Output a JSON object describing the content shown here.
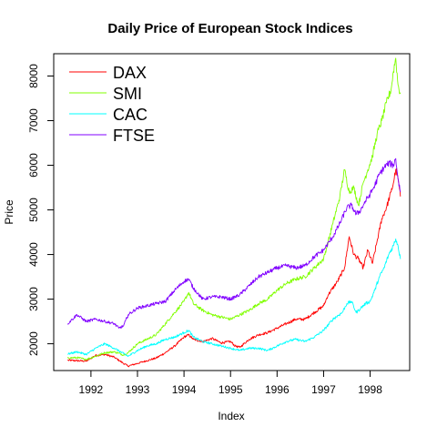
{
  "chart_data": {
    "type": "line",
    "title": "Daily Price of European Stock Indices",
    "xlabel": "Index",
    "ylabel": "Price",
    "xlim": [
      1991.2,
      1998.85
    ],
    "ylim": [
      1400,
      8500
    ],
    "x_ticks": [
      1992,
      1993,
      1994,
      1995,
      1996,
      1997,
      1998
    ],
    "y_ticks": [
      2000,
      3000,
      4000,
      5000,
      6000,
      7000,
      8000
    ],
    "legend_position": "top-left",
    "grid": false,
    "series": [
      {
        "name": "DAX",
        "color": "#ff0000",
        "points": [
          [
            1991.5,
            1630
          ],
          [
            1991.7,
            1620
          ],
          [
            1991.9,
            1610
          ],
          [
            1992.1,
            1740
          ],
          [
            1992.3,
            1760
          ],
          [
            1992.5,
            1700
          ],
          [
            1992.7,
            1560
          ],
          [
            1992.8,
            1500
          ],
          [
            1992.9,
            1530
          ],
          [
            1993.0,
            1560
          ],
          [
            1993.2,
            1620
          ],
          [
            1993.4,
            1680
          ],
          [
            1993.6,
            1800
          ],
          [
            1993.8,
            1950
          ],
          [
            1994.0,
            2150
          ],
          [
            1994.1,
            2200
          ],
          [
            1994.2,
            2100
          ],
          [
            1994.4,
            2050
          ],
          [
            1994.5,
            2080
          ],
          [
            1994.6,
            2120
          ],
          [
            1994.8,
            2020
          ],
          [
            1995.0,
            2050
          ],
          [
            1995.1,
            1950
          ],
          [
            1995.2,
            1920
          ],
          [
            1995.4,
            2100
          ],
          [
            1995.6,
            2200
          ],
          [
            1995.8,
            2250
          ],
          [
            1996.0,
            2350
          ],
          [
            1996.2,
            2450
          ],
          [
            1996.4,
            2550
          ],
          [
            1996.6,
            2550
          ],
          [
            1996.8,
            2700
          ],
          [
            1997.0,
            2850
          ],
          [
            1997.1,
            3100
          ],
          [
            1997.3,
            3400
          ],
          [
            1997.45,
            3700
          ],
          [
            1997.55,
            4400
          ],
          [
            1997.65,
            4000
          ],
          [
            1997.75,
            3900
          ],
          [
            1997.85,
            3700
          ],
          [
            1997.95,
            4100
          ],
          [
            1998.05,
            3800
          ],
          [
            1998.15,
            4300
          ],
          [
            1998.25,
            4800
          ],
          [
            1998.35,
            5050
          ],
          [
            1998.45,
            5400
          ],
          [
            1998.5,
            5600
          ],
          [
            1998.55,
            5900
          ],
          [
            1998.6,
            5700
          ],
          [
            1998.65,
            5300
          ]
        ]
      },
      {
        "name": "SMI",
        "color": "#80ff00",
        "points": [
          [
            1991.5,
            1680
          ],
          [
            1991.7,
            1690
          ],
          [
            1991.9,
            1650
          ],
          [
            1992.1,
            1720
          ],
          [
            1992.3,
            1800
          ],
          [
            1992.5,
            1820
          ],
          [
            1992.7,
            1750
          ],
          [
            1992.8,
            1800
          ],
          [
            1993.0,
            2000
          ],
          [
            1993.2,
            2100
          ],
          [
            1993.4,
            2200
          ],
          [
            1993.6,
            2450
          ],
          [
            1993.8,
            2700
          ],
          [
            1994.0,
            2950
          ],
          [
            1994.1,
            3150
          ],
          [
            1994.2,
            2900
          ],
          [
            1994.4,
            2750
          ],
          [
            1994.6,
            2650
          ],
          [
            1994.8,
            2600
          ],
          [
            1995.0,
            2550
          ],
          [
            1995.2,
            2650
          ],
          [
            1995.4,
            2750
          ],
          [
            1995.6,
            2900
          ],
          [
            1995.8,
            3000
          ],
          [
            1996.0,
            3200
          ],
          [
            1996.2,
            3350
          ],
          [
            1996.4,
            3450
          ],
          [
            1996.6,
            3500
          ],
          [
            1996.8,
            3700
          ],
          [
            1997.0,
            3900
          ],
          [
            1997.2,
            4700
          ],
          [
            1997.35,
            5300
          ],
          [
            1997.45,
            5900
          ],
          [
            1997.55,
            5400
          ],
          [
            1997.65,
            5500
          ],
          [
            1997.75,
            5100
          ],
          [
            1997.85,
            5600
          ],
          [
            1997.95,
            5900
          ],
          [
            1998.05,
            6200
          ],
          [
            1998.15,
            6700
          ],
          [
            1998.25,
            7000
          ],
          [
            1998.35,
            7400
          ],
          [
            1998.45,
            7700
          ],
          [
            1998.5,
            8100
          ],
          [
            1998.55,
            8400
          ],
          [
            1998.6,
            7800
          ],
          [
            1998.65,
            7600
          ]
        ]
      },
      {
        "name": "CAC",
        "color": "#00ffff",
        "points": [
          [
            1991.5,
            1770
          ],
          [
            1991.7,
            1820
          ],
          [
            1991.9,
            1760
          ],
          [
            1992.1,
            1900
          ],
          [
            1992.3,
            2000
          ],
          [
            1992.5,
            1900
          ],
          [
            1992.7,
            1780
          ],
          [
            1992.8,
            1720
          ],
          [
            1993.0,
            1850
          ],
          [
            1993.2,
            1950
          ],
          [
            1993.4,
            2000
          ],
          [
            1993.6,
            2100
          ],
          [
            1993.8,
            2150
          ],
          [
            1994.0,
            2250
          ],
          [
            1994.1,
            2300
          ],
          [
            1994.2,
            2150
          ],
          [
            1994.4,
            2050
          ],
          [
            1994.6,
            2000
          ],
          [
            1994.8,
            1950
          ],
          [
            1995.0,
            1900
          ],
          [
            1995.2,
            1850
          ],
          [
            1995.4,
            1900
          ],
          [
            1995.6,
            1900
          ],
          [
            1995.8,
            1850
          ],
          [
            1996.0,
            1950
          ],
          [
            1996.2,
            2050
          ],
          [
            1996.4,
            2100
          ],
          [
            1996.6,
            2050
          ],
          [
            1996.8,
            2150
          ],
          [
            1997.0,
            2300
          ],
          [
            1997.2,
            2550
          ],
          [
            1997.4,
            2700
          ],
          [
            1997.5,
            2900
          ],
          [
            1997.6,
            2950
          ],
          [
            1997.7,
            2700
          ],
          [
            1997.8,
            2800
          ],
          [
            1997.9,
            2900
          ],
          [
            1998.0,
            2950
          ],
          [
            1998.1,
            3200
          ],
          [
            1998.2,
            3500
          ],
          [
            1998.3,
            3700
          ],
          [
            1998.4,
            4000
          ],
          [
            1998.5,
            4200
          ],
          [
            1998.55,
            4350
          ],
          [
            1998.6,
            4200
          ],
          [
            1998.65,
            3900
          ]
        ]
      },
      {
        "name": "FTSE",
        "color": "#8000ff",
        "points": [
          [
            1991.5,
            2450
          ],
          [
            1991.6,
            2550
          ],
          [
            1991.7,
            2650
          ],
          [
            1991.9,
            2500
          ],
          [
            1992.1,
            2550
          ],
          [
            1992.3,
            2500
          ],
          [
            1992.5,
            2450
          ],
          [
            1992.6,
            2350
          ],
          [
            1992.7,
            2400
          ],
          [
            1992.8,
            2650
          ],
          [
            1993.0,
            2800
          ],
          [
            1993.2,
            2850
          ],
          [
            1993.4,
            2900
          ],
          [
            1993.6,
            2950
          ],
          [
            1993.8,
            3200
          ],
          [
            1994.0,
            3400
          ],
          [
            1994.1,
            3450
          ],
          [
            1994.2,
            3250
          ],
          [
            1994.4,
            3000
          ],
          [
            1994.6,
            3050
          ],
          [
            1994.8,
            3050
          ],
          [
            1995.0,
            3000
          ],
          [
            1995.2,
            3100
          ],
          [
            1995.4,
            3300
          ],
          [
            1995.6,
            3500
          ],
          [
            1995.8,
            3600
          ],
          [
            1996.0,
            3700
          ],
          [
            1996.2,
            3750
          ],
          [
            1996.4,
            3700
          ],
          [
            1996.6,
            3750
          ],
          [
            1996.8,
            3950
          ],
          [
            1997.0,
            4100
          ],
          [
            1997.2,
            4400
          ],
          [
            1997.35,
            4700
          ],
          [
            1997.5,
            5050
          ],
          [
            1997.6,
            5100
          ],
          [
            1997.7,
            4900
          ],
          [
            1997.8,
            5000
          ],
          [
            1997.9,
            5200
          ],
          [
            1998.0,
            5350
          ],
          [
            1998.1,
            5550
          ],
          [
            1998.2,
            5800
          ],
          [
            1998.3,
            5950
          ],
          [
            1998.4,
            6050
          ],
          [
            1998.5,
            6000
          ],
          [
            1998.55,
            6150
          ],
          [
            1998.6,
            5700
          ],
          [
            1998.65,
            5400
          ]
        ]
      }
    ]
  }
}
